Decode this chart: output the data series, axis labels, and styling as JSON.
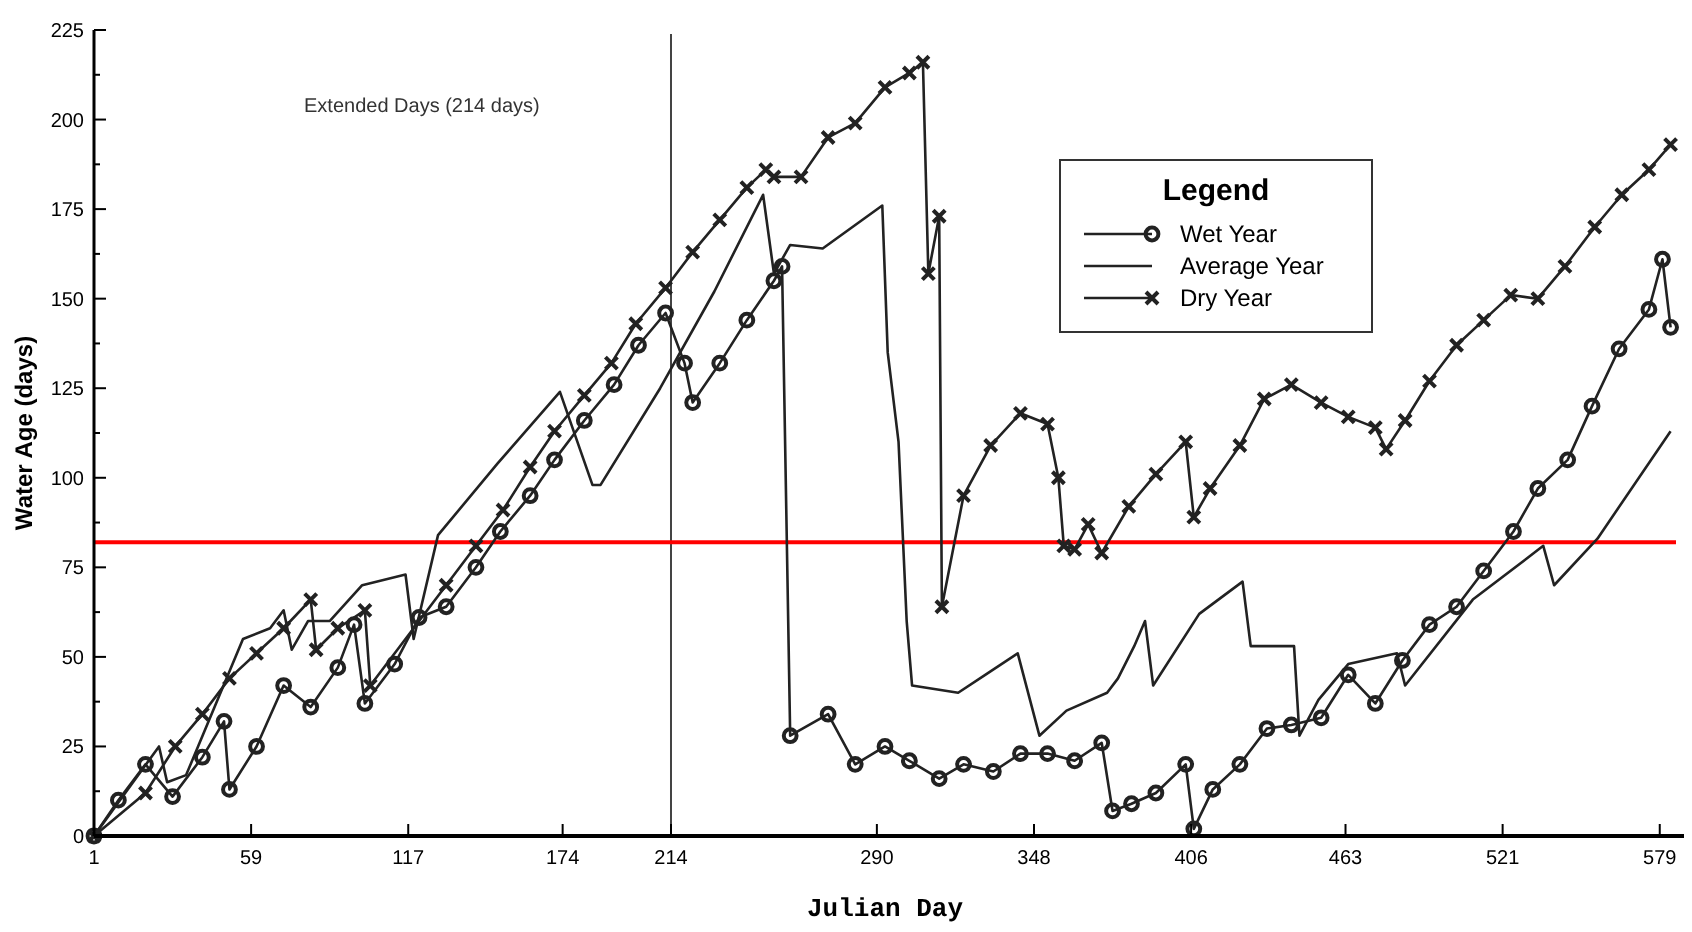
{
  "chart_data": {
    "type": "line",
    "xlabel": "Julian Day",
    "ylabel": "Water Age (days)",
    "legend_title": "Legend",
    "legend": "top right",
    "grid": false,
    "xlim": [
      1,
      585
    ],
    "xticks": [
      1,
      59,
      117,
      174,
      214,
      290,
      348,
      406,
      463,
      521,
      579
    ],
    "ylim": [
      0,
      225
    ],
    "yticks": [
      0,
      25,
      50,
      75,
      100,
      125,
      150,
      175,
      200,
      225
    ],
    "annotations": [
      "Extended Days (214 days)"
    ],
    "ref_lines": [
      {
        "axis": "x",
        "value": 214,
        "color": "#444444"
      },
      {
        "axis": "y",
        "value": 82,
        "color": "#ff0000"
      }
    ],
    "series": [
      {
        "name": "Wet Year",
        "color": "#222222",
        "marker": "circle",
        "x": [
          1,
          10,
          20,
          30,
          41,
          49,
          51,
          61,
          71,
          81,
          91,
          97,
          101,
          112,
          121,
          131,
          142,
          151,
          162,
          171,
          182,
          193,
          202,
          212,
          219,
          222,
          232,
          242,
          252,
          255,
          258,
          272,
          282,
          293,
          302,
          313,
          322,
          333,
          343,
          353,
          363,
          373,
          377,
          384,
          393,
          404,
          407,
          414,
          424,
          434,
          443,
          454,
          464,
          474,
          484,
          494,
          504,
          514,
          525,
          534,
          545,
          554,
          564,
          575,
          580,
          583
        ],
        "values": [
          0,
          10,
          20,
          11,
          22,
          32,
          13,
          25,
          42,
          36,
          47,
          59,
          37,
          48,
          61,
          64,
          75,
          85,
          95,
          105,
          116,
          126,
          137,
          146,
          132,
          121,
          132,
          144,
          155,
          159,
          28,
          34,
          20,
          25,
          21,
          16,
          20,
          18,
          23,
          23,
          21,
          26,
          7,
          9,
          12,
          20,
          2,
          13,
          20,
          30,
          31,
          33,
          45,
          37,
          49,
          59,
          64,
          74,
          85,
          97,
          105,
          120,
          136,
          147,
          161,
          142
        ]
      },
      {
        "name": "Average Year",
        "color": "#222222",
        "marker": "none",
        "x": [
          1,
          25,
          28,
          35,
          56,
          66,
          71,
          74,
          80,
          88,
          100,
          116,
          119,
          128,
          150,
          173,
          185,
          188,
          210,
          230,
          248,
          252,
          258,
          270,
          292,
          294,
          298,
          301,
          303,
          320,
          330,
          342,
          350,
          360,
          375,
          379,
          385,
          389,
          392,
          409,
          425,
          428,
          444,
          446,
          453,
          464,
          482,
          485,
          510,
          536,
          540,
          556,
          583
        ],
        "values": [
          0,
          25,
          15,
          17,
          55,
          58,
          63,
          52,
          60,
          60,
          70,
          73,
          55,
          84,
          104,
          124,
          98,
          98,
          125,
          152,
          179,
          157,
          165,
          164,
          176,
          135,
          110,
          60,
          42,
          40,
          45,
          51,
          28,
          35,
          40,
          44,
          53,
          60,
          42,
          62,
          71,
          53,
          53,
          28,
          38,
          48,
          51,
          42,
          66,
          81,
          70,
          83,
          113
        ]
      },
      {
        "name": "Dry Year",
        "color": "#222222",
        "marker": "cross",
        "x": [
          1,
          20,
          31,
          41,
          51,
          61,
          71,
          81,
          83,
          91,
          101,
          103,
          131,
          142,
          152,
          162,
          171,
          182,
          192,
          201,
          212,
          222,
          232,
          242,
          249,
          252,
          262,
          272,
          282,
          293,
          302,
          307,
          309,
          313,
          314,
          322,
          332,
          343,
          353,
          357,
          359,
          363,
          368,
          373,
          383,
          393,
          404,
          407,
          413,
          424,
          433,
          443,
          454,
          464,
          474,
          478,
          485,
          494,
          504,
          514,
          524,
          534,
          544,
          555,
          565,
          575,
          583
        ],
        "values": [
          0,
          12,
          25,
          34,
          44,
          51,
          58,
          66,
          52,
          58,
          63,
          42,
          70,
          81,
          91,
          103,
          113,
          123,
          132,
          143,
          153,
          163,
          172,
          181,
          186,
          184,
          184,
          195,
          199,
          209,
          213,
          216,
          157,
          173,
          64,
          95,
          109,
          118,
          115,
          100,
          81,
          80,
          87,
          79,
          92,
          101,
          110,
          89,
          97,
          109,
          122,
          126,
          121,
          117,
          114,
          108,
          116,
          127,
          137,
          144,
          151,
          150,
          159,
          170,
          179,
          186,
          193
        ]
      }
    ]
  }
}
